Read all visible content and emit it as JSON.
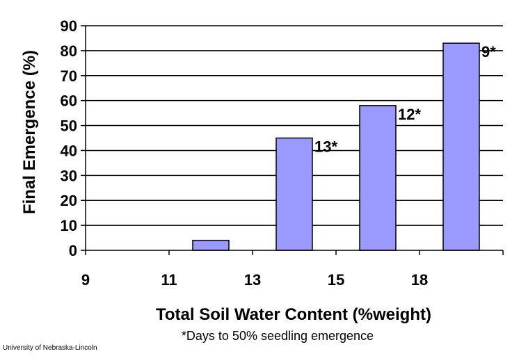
{
  "chart_data": {
    "type": "bar",
    "categories": [
      "9",
      "11",
      "13",
      "15",
      "18"
    ],
    "values": [
      0,
      4,
      45,
      58,
      83
    ],
    "data_labels": [
      "",
      "",
      "13*",
      "12*",
      "9*"
    ],
    "xlabel": "Total Soil Water Content (%weight)",
    "ylabel": "Final Emergence (%)",
    "ylim": [
      0,
      90
    ],
    "yticks": [
      0,
      10,
      20,
      30,
      40,
      50,
      60,
      70,
      80,
      90
    ],
    "grid": true,
    "legend": "none",
    "bar_color": "#9999ff",
    "bar_edge_color": "#000000",
    "footnote": "*Days to 50% seedling emergence"
  },
  "credit": "University of Nebraska-Lincoln"
}
